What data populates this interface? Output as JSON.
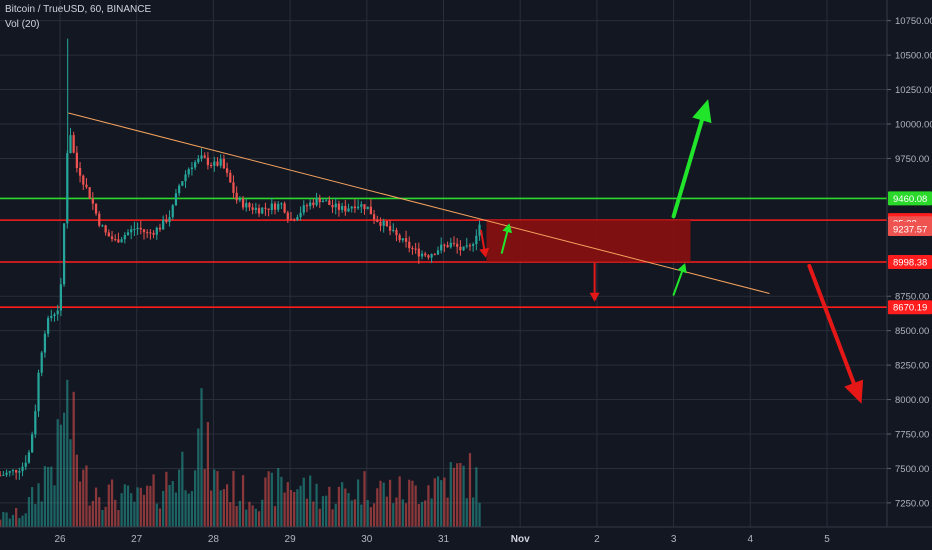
{
  "header": {
    "symbol_line": "Bitcoin / TrueUSD, 60, BINANCE",
    "indicator_line": "Vol (20)"
  },
  "colors": {
    "background": "#131722",
    "grid": "#2a2e39",
    "up": "#26a69a",
    "down": "#ef5350",
    "level_red": "#ff1d1d",
    "level_green": "#2bd92b",
    "trend": "#f5a25d",
    "zone": "#8b1010",
    "arrow_green": "#21e52b",
    "arrow_red": "#e51717"
  },
  "chart_data": {
    "type": "candlestick",
    "symbol": "Bitcoin / TrueUSD",
    "interval": "60",
    "exchange": "BINANCE",
    "y_axis": {
      "range": [
        7075,
        10900
      ],
      "ticks": [
        "10750.00",
        "10500.00",
        "10250.00",
        "10000.00",
        "9750.00",
        "8750.00",
        "8500.00",
        "8250.00",
        "8000.00",
        "7750.00",
        "7500.00",
        "7250.00"
      ]
    },
    "x_axis": {
      "ticks": [
        "26",
        "27",
        "28",
        "29",
        "30",
        "31",
        "Nov",
        "2",
        "3",
        "4",
        "5"
      ],
      "tick_days": [
        0,
        1,
        2,
        3,
        4,
        5,
        6,
        7,
        8,
        9,
        10
      ]
    },
    "price_labels": [
      {
        "name": "level-9460",
        "value": 9460.08,
        "text": "9460.08",
        "color": "#2bd92b"
      },
      {
        "name": "level-9302",
        "value": 9302.4,
        "text": "9302.40",
        "color": "#ff1d1d"
      },
      {
        "name": "last-price",
        "value": 9280,
        "text": "35:33",
        "color": "#ef5350"
      },
      {
        "name": "level-9237",
        "value": 9237.57,
        "text": "9237.57",
        "color": "#ef5350"
      },
      {
        "name": "level-8998",
        "value": 8998.38,
        "text": "8998.38",
        "color": "#ff1d1d"
      },
      {
        "name": "level-8670",
        "value": 8670.19,
        "text": "8670.19",
        "color": "#ff1d1d"
      }
    ],
    "horizontal_levels": [
      {
        "name": "resistance-9460",
        "price": 9460.08,
        "color": "#2bd92b"
      },
      {
        "name": "resistance-9302",
        "price": 9302.4,
        "color": "#ff1d1d"
      },
      {
        "name": "support-8998",
        "price": 8998.38,
        "color": "#ff1d1d"
      },
      {
        "name": "support-8670",
        "price": 8670.19,
        "color": "#ff1d1d"
      }
    ],
    "trend_line": {
      "from": {
        "day": 0.11,
        "price": 10080
      },
      "to": {
        "day": 9.25,
        "price": 8770
      }
    },
    "zone": {
      "from_day": 5.56,
      "to_day": 8.22,
      "high": 9302.4,
      "low": 9000
    },
    "arrows": [
      {
        "name": "big-up-arrow",
        "color": "#21e52b",
        "from": {
          "day": 8.0,
          "price": 9330
        },
        "to": {
          "day": 8.45,
          "price": 10180
        }
      },
      {
        "name": "small-up-arrow-1",
        "color": "#21e52b",
        "from": {
          "day": 5.76,
          "price": 9065
        },
        "to": {
          "day": 5.86,
          "price": 9280
        }
      },
      {
        "name": "small-up-arrow-2",
        "color": "#21e52b",
        "from": {
          "day": 8.0,
          "price": 8760
        },
        "to": {
          "day": 8.15,
          "price": 8990
        }
      },
      {
        "name": "small-down-arrow-1",
        "color": "#e51717",
        "from": {
          "day": 5.49,
          "price": 9225
        },
        "to": {
          "day": 5.55,
          "price": 9030
        }
      },
      {
        "name": "small-down-arrow-2",
        "color": "#e51717",
        "from": {
          "day": 6.97,
          "price": 8985
        },
        "to": {
          "day": 6.97,
          "price": 8710
        }
      },
      {
        "name": "big-down-arrow",
        "color": "#e51717",
        "from": {
          "day": 9.77,
          "price": 8970
        },
        "to": {
          "day": 10.45,
          "price": 7970
        }
      }
    ],
    "price_path": [
      [
        -0.78,
        7450
      ],
      [
        -0.6,
        7480
      ],
      [
        -0.48,
        7520
      ],
      [
        -0.4,
        7620
      ],
      [
        -0.33,
        7880
      ],
      [
        -0.27,
        8250
      ],
      [
        -0.2,
        8500
      ],
      [
        -0.13,
        8600
      ],
      [
        -0.06,
        8640
      ],
      [
        0.0,
        8680
      ],
      [
        0.06,
        9350
      ],
      [
        0.11,
        10000
      ],
      [
        0.15,
        9900
      ],
      [
        0.2,
        9700
      ],
      [
        0.26,
        9650
      ],
      [
        0.33,
        9550
      ],
      [
        0.41,
        9450
      ],
      [
        0.5,
        9300
      ],
      [
        0.6,
        9200
      ],
      [
        0.72,
        9150
      ],
      [
        0.85,
        9200
      ],
      [
        1.0,
        9250
      ],
      [
        1.15,
        9200
      ],
      [
        1.3,
        9250
      ],
      [
        1.45,
        9350
      ],
      [
        1.55,
        9550
      ],
      [
        1.7,
        9700
      ],
      [
        1.85,
        9750
      ],
      [
        2.0,
        9700
      ],
      [
        2.1,
        9720
      ],
      [
        2.2,
        9600
      ],
      [
        2.3,
        9450
      ],
      [
        2.45,
        9400
      ],
      [
        2.6,
        9380
      ],
      [
        2.75,
        9400
      ],
      [
        2.9,
        9420
      ],
      [
        3.0,
        9300
      ],
      [
        3.1,
        9350
      ],
      [
        3.25,
        9420
      ],
      [
        3.4,
        9460
      ],
      [
        3.55,
        9400
      ],
      [
        3.7,
        9380
      ],
      [
        3.85,
        9420
      ],
      [
        4.0,
        9400
      ],
      [
        4.1,
        9320
      ],
      [
        4.2,
        9280
      ],
      [
        4.35,
        9200
      ],
      [
        4.5,
        9130
      ],
      [
        4.65,
        9070
      ],
      [
        4.8,
        9050
      ],
      [
        4.95,
        9100
      ],
      [
        5.1,
        9130
      ],
      [
        5.25,
        9080
      ],
      [
        5.35,
        9100
      ],
      [
        5.42,
        9200
      ],
      [
        5.49,
        9300
      ]
    ],
    "volume_axis_max": 3200000,
    "volume": [
      [
        -0.78,
        150000
      ],
      [
        -0.5,
        200000
      ],
      [
        -0.3,
        500000
      ],
      [
        -0.15,
        900000
      ],
      [
        0.0,
        1100000
      ],
      [
        0.05,
        2000000
      ],
      [
        0.1,
        1700000
      ],
      [
        0.3,
        700000
      ],
      [
        0.6,
        500000
      ],
      [
        1.0,
        400000
      ],
      [
        1.3,
        550000
      ],
      [
        1.7,
        1000000
      ],
      [
        1.85,
        1400000
      ],
      [
        2.0,
        700000
      ],
      [
        2.5,
        450000
      ],
      [
        3.0,
        650000
      ],
      [
        3.5,
        450000
      ],
      [
        4.0,
        600000
      ],
      [
        4.5,
        500000
      ],
      [
        5.0,
        700000
      ],
      [
        5.3,
        800000
      ],
      [
        5.49,
        600000
      ]
    ]
  }
}
